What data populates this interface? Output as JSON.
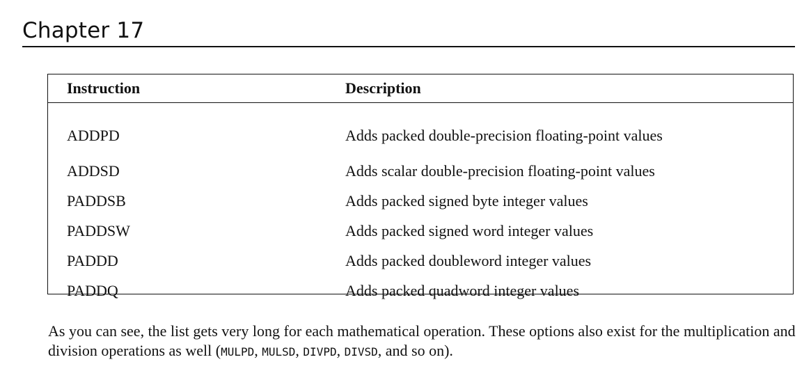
{
  "header": {
    "chapter": "Chapter 17"
  },
  "table": {
    "columns": [
      "Instruction",
      "Description"
    ],
    "rows": [
      {
        "instruction": "ADDPD",
        "description": "Adds packed double-precision floating-point values"
      },
      {
        "instruction": "ADDSD",
        "description": "Adds scalar double-precision floating-point values"
      },
      {
        "instruction": "PADDSB",
        "description": "Adds packed signed byte integer values"
      },
      {
        "instruction": "PADDSW",
        "description": "Adds packed signed word integer values"
      },
      {
        "instruction": "PADDD",
        "description": "Adds packed doubleword integer values"
      },
      {
        "instruction": "PADDQ",
        "description": "Adds packed quadword integer values"
      }
    ]
  },
  "paragraph": {
    "text_1": "As you can see, the list gets very long for each mathematical operation. These options also exist for the multiplication and division operations as well (",
    "code_1": "MULPD",
    "sep_1": ", ",
    "code_2": "MULSD",
    "sep_2": ", ",
    "code_3": "DIVPD",
    "sep_3": ", ",
    "code_4": "DIVSD",
    "text_2": ", and so on)."
  }
}
